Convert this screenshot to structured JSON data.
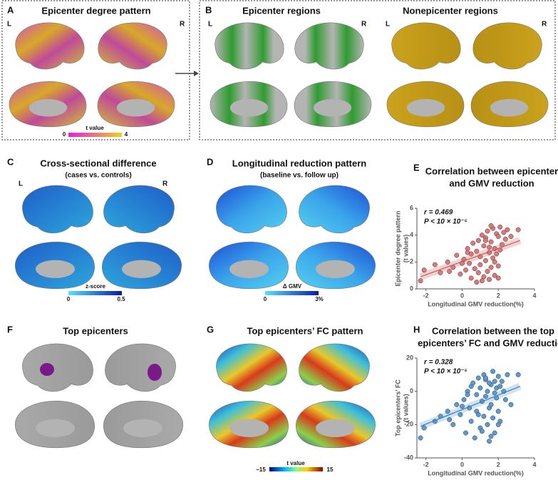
{
  "panels": {
    "A": {
      "letter": "A",
      "title": "Epicenter degree pattern",
      "left": "L",
      "right": "R",
      "colorbar": {
        "label": "t value",
        "min": "0",
        "max": "4"
      }
    },
    "B": {
      "letter": "B",
      "title": "Epicenter regions",
      "title2": "Nonepicenter regions",
      "left": "L",
      "right": "R",
      "left2": "L",
      "right2": "R"
    },
    "C": {
      "letter": "C",
      "title": "Cross-sectional difference",
      "subtitle": "(cases vs. controls)",
      "left": "L",
      "right": "R",
      "colorbar": {
        "label": "z-score",
        "min": "0",
        "max": "0.5"
      }
    },
    "D": {
      "letter": "D",
      "title": "Longitudinal reduction pattern",
      "subtitle": "(baseline vs. follow up)",
      "colorbar": {
        "label": "Δ GMV",
        "min": "0",
        "max": "3%"
      }
    },
    "E": {
      "letter": "E"
    },
    "F": {
      "letter": "F",
      "title": "Top epicenters"
    },
    "G": {
      "letter": "G",
      "title": "Top epicenters’ FC pattern",
      "colorbar": {
        "label": "t value",
        "min": "−15",
        "max": "15"
      }
    },
    "H": {
      "letter": "H"
    }
  },
  "chart_data": [
    {
      "type": "scatter",
      "title": [
        "Correlation between epicenter",
        "and GMV reduction"
      ],
      "annotations": [
        "r = 0.469",
        "P < 10 × 10⁻⁵"
      ],
      "xlabel": "Longitudinal GMV reduction(%)",
      "ylabel": [
        "Epicenter degree pattern",
        "(t values)"
      ],
      "color": "#e07878",
      "line_color": "#c86060",
      "band_color": "#f2c8c8",
      "xlim": [
        -2.5,
        4
      ],
      "xticks": [
        -2,
        0,
        2,
        4
      ],
      "ylim": [
        0,
        6
      ],
      "yticks": [
        0,
        2,
        4,
        6
      ],
      "x": [
        -2.3,
        -2.1,
        -1.5,
        -1.2,
        -0.8,
        -0.5,
        -0.3,
        -0.1,
        0.1,
        0.2,
        0.3,
        0.4,
        0.5,
        0.5,
        0.6,
        0.7,
        0.8,
        0.8,
        0.9,
        1.0,
        1.0,
        1.1,
        1.2,
        1.2,
        1.3,
        1.3,
        1.4,
        1.4,
        1.5,
        1.5,
        1.6,
        1.6,
        1.7,
        1.7,
        1.8,
        1.8,
        1.9,
        1.9,
        2.0,
        2.0,
        2.1,
        2.1,
        2.2,
        2.3,
        2.4,
        2.5,
        2.7,
        3.1,
        0.9,
        1.1,
        0.3,
        1.5,
        0.0,
        1.6,
        1.8,
        -0.7,
        2.0,
        1.3
      ],
      "y": [
        0.6,
        1.4,
        1.8,
        1.2,
        2.0,
        1.6,
        2.5,
        1.1,
        2.2,
        1.4,
        3.0,
        1.9,
        2.6,
        0.8,
        3.4,
        1.5,
        2.8,
        0.5,
        3.6,
        1.8,
        2.4,
        4.0,
        3.2,
        0.9,
        2.1,
        3.8,
        1.3,
        4.3,
        2.7,
        0.7,
        3.5,
        1.6,
        4.5,
        2.3,
        3.0,
        1.0,
        4.1,
        2.6,
        3.9,
        1.7,
        4.6,
        2.9,
        3.3,
        4.2,
        3.7,
        4.4,
        3.9,
        4.4,
        1.2,
        0.6,
        2.7,
        3.1,
        1.9,
        4.7,
        2.0,
        1.3,
        0.8,
        3.6
      ],
      "trend": {
        "x": [
          -2.3,
          3.2
        ],
        "y": [
          0.9,
          3.6
        ]
      }
    },
    {
      "type": "scatter",
      "title": [
        "Correlation between the top",
        "epicenters’ FC and GMV reduction"
      ],
      "annotations": [
        "r = 0.328",
        "P < 10 × 10⁻⁵"
      ],
      "xlabel": "Longitudinal GMV reduction(%)",
      "ylabel": [
        "Top epicenters’ FC",
        "(t values)"
      ],
      "color": "#5b9bd5",
      "line_color": "#3d7fc0",
      "band_color": "#c4dbef",
      "xlim": [
        -2.5,
        4
      ],
      "xticks": [
        -2,
        0,
        2,
        4
      ],
      "ylim": [
        -40,
        20
      ],
      "yticks": [
        -40,
        -20,
        0,
        20
      ],
      "x": [
        -2.3,
        -2.1,
        -1.5,
        -1.2,
        -0.8,
        -0.5,
        -0.3,
        -0.1,
        0.1,
        0.2,
        0.3,
        0.4,
        0.5,
        0.5,
        0.6,
        0.7,
        0.8,
        0.8,
        0.9,
        1.0,
        1.0,
        1.1,
        1.2,
        1.2,
        1.3,
        1.3,
        1.4,
        1.4,
        1.5,
        1.5,
        1.6,
        1.6,
        1.7,
        1.7,
        1.8,
        1.8,
        1.9,
        1.9,
        2.0,
        2.0,
        2.1,
        2.1,
        2.2,
        2.3,
        2.4,
        2.5,
        2.7,
        3.1,
        0.9,
        1.1,
        0.3,
        1.5,
        0.0,
        1.6,
        1.8,
        -0.7,
        2.0,
        1.3
      ],
      "y": [
        -28,
        -22,
        -18,
        -15,
        -12,
        -20,
        -8,
        -14,
        -5,
        -25,
        0,
        -10,
        3,
        -18,
        5,
        -28,
        -2,
        -12,
        8,
        -22,
        2,
        -6,
        10,
        -15,
        -3,
        7,
        -20,
        0,
        -10,
        -30,
        4,
        -8,
        12,
        -16,
        6,
        -25,
        2,
        -4,
        9,
        -12,
        3,
        -18,
        6,
        0,
        -5,
        10,
        -8,
        10,
        -14,
        -24,
        -2,
        5,
        -9,
        -27,
        -1,
        -17,
        -20,
        8
      ],
      "trend": {
        "x": [
          -2.3,
          3.2
        ],
        "y": [
          -21,
          3
        ]
      }
    }
  ]
}
